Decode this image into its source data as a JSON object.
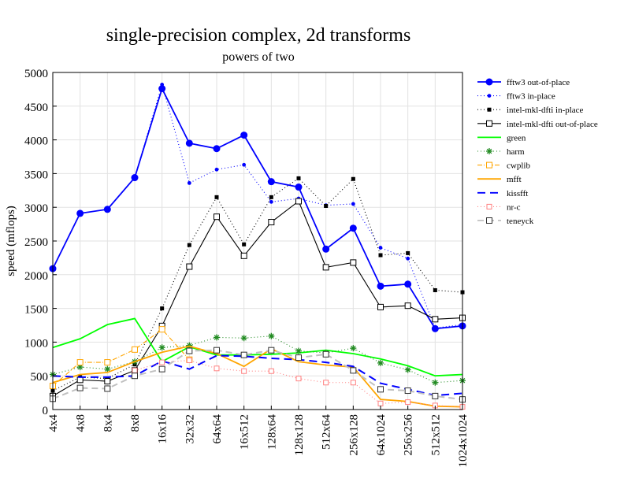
{
  "chart_data": {
    "type": "line",
    "title": "single-precision complex, 2d transforms",
    "subtitle": "powers of two",
    "xlabel": "",
    "ylabel": "speed (mflops)",
    "ylim": [
      0,
      5000
    ],
    "yticks": [
      0,
      500,
      1000,
      1500,
      2000,
      2500,
      3000,
      3500,
      4000,
      4500,
      5000
    ],
    "grid": true,
    "legend_position": "right",
    "categories": [
      "4x4",
      "4x8",
      "8x4",
      "8x8",
      "16x16",
      "32x32",
      "64x64",
      "16x512",
      "128x64",
      "128x128",
      "512x64",
      "256x128",
      "64x1024",
      "256x256",
      "512x512",
      "1024x1024"
    ],
    "series": [
      {
        "name": "fftw3 out-of-place",
        "color": "#0000ff",
        "dash": "",
        "marker": "circle-filled",
        "values": [
          2090,
          2910,
          2970,
          3440,
          4760,
          3950,
          3870,
          4070,
          3380,
          3300,
          2380,
          2690,
          1830,
          1860,
          1200,
          1240
        ]
      },
      {
        "name": "fftw3 in-place",
        "color": "#0000ff",
        "dash": "1,3",
        "marker": "dot",
        "values": [
          2090,
          2910,
          2970,
          3440,
          4820,
          3360,
          3560,
          3630,
          3080,
          3130,
          3030,
          3050,
          2400,
          2240,
          1210,
          1260
        ]
      },
      {
        "name": "intel-mkl-dfti in-place",
        "color": "#000000",
        "dash": "1,3",
        "marker": "square-filled",
        "values": [
          280,
          480,
          460,
          670,
          1500,
          2440,
          3150,
          2450,
          3150,
          3430,
          3020,
          3420,
          2290,
          2320,
          1770,
          1740
        ]
      },
      {
        "name": "intel-mkl-dfti out-of-place",
        "color": "#000000",
        "dash": "",
        "marker": "square-open",
        "values": [
          200,
          440,
          420,
          580,
          1240,
          2120,
          2860,
          2280,
          2780,
          3090,
          2110,
          2180,
          1520,
          1540,
          1340,
          1360
        ]
      },
      {
        "name": "green",
        "color": "#00ff00",
        "dash": "",
        "marker": "none",
        "values": [
          920,
          1050,
          1260,
          1350,
          710,
          930,
          810,
          810,
          820,
          840,
          880,
          830,
          750,
          650,
          500,
          520
        ]
      },
      {
        "name": "harm",
        "color": "#228b22",
        "dash": "1,3",
        "marker": "star",
        "values": [
          520,
          630,
          600,
          710,
          920,
          950,
          1070,
          1060,
          1090,
          870,
          840,
          910,
          690,
          590,
          400,
          430
        ]
      },
      {
        "name": "cwplib",
        "color": "#ffa500",
        "dash": "6,2,1,2",
        "marker": "square-open",
        "values": [
          350,
          700,
          700,
          890,
          1190,
          740,
          null,
          null,
          null,
          null,
          null,
          null,
          null,
          null,
          null,
          null
        ]
      },
      {
        "name": "mfft",
        "color": "#ffa500",
        "dash": "",
        "marker": "none",
        "values": [
          400,
          520,
          550,
          710,
          850,
          940,
          830,
          640,
          900,
          710,
          660,
          630,
          150,
          120,
          50,
          40
        ]
      },
      {
        "name": "kissfft",
        "color": "#0000ff",
        "dash": "10,6",
        "marker": "none",
        "values": [
          500,
          480,
          480,
          500,
          720,
          600,
          800,
          790,
          760,
          740,
          700,
          640,
          390,
          300,
          210,
          240
        ]
      },
      {
        "name": "nr-c",
        "color": "#ff8080",
        "dash": "1,3",
        "marker": "square-open-small",
        "values": [
          null,
          null,
          null,
          580,
          700,
          730,
          610,
          570,
          570,
          460,
          400,
          400,
          90,
          110,
          60,
          40
        ]
      },
      {
        "name": "teneyck",
        "color": "#c0c0c0",
        "dash": "8,5",
        "marker": "square-open-dark",
        "values": [
          160,
          320,
          310,
          500,
          600,
          870,
          880,
          810,
          880,
          770,
          820,
          580,
          300,
          280,
          200,
          150
        ]
      }
    ]
  }
}
